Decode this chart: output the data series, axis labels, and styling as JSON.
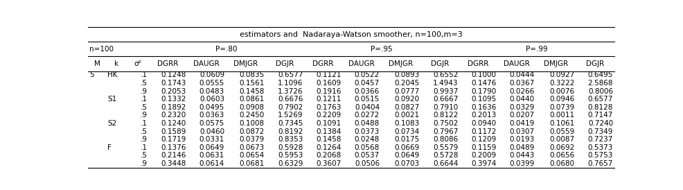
{
  "title": "estimators and  Nadaraya-Watson smoother, n=100,m=3",
  "n_label": "n=100",
  "p_labels": [
    "P=.80",
    "P=.95",
    "P=.99"
  ],
  "col_headers": [
    "M",
    "k",
    "σ²",
    "DGRR",
    "DAUGR",
    "DMJGR",
    "DGJR",
    "DGRR",
    "DAUGR",
    "DMJGR",
    "DGJR",
    "DGRR",
    "DAUGR",
    "DMJGR",
    "DGJR"
  ],
  "rows": [
    [
      "5",
      "HK",
      ".1",
      "0.1248",
      "0.0609",
      "0.0835",
      "0.6577",
      "0.1121",
      "0.0522",
      "0.0893",
      "0.6552",
      "0.1000",
      "0.0444",
      "0.0927",
      "0.6495"
    ],
    [
      "",
      "",
      ".5",
      "0.1743",
      "0.0555",
      "0.1561",
      "1.1096",
      "0.1609",
      "0.0457",
      "0.2045",
      "1.4943",
      "0.1476",
      "0.0367",
      "0.3222",
      "2.5868"
    ],
    [
      "",
      "",
      ".9",
      "0.2053",
      "0.0483",
      "0.1458",
      "1.3726",
      "0.1916",
      "0.0366",
      "0.0777",
      "0.9937",
      "0.1790",
      "0.0266",
      "0.0076",
      "0.8006"
    ],
    [
      "",
      "S1",
      ".1",
      "0.1332",
      "0.0603",
      "0.0861",
      "0.6676",
      "0.1211",
      "0.0515",
      "0.0920",
      "0.6667",
      "0.1095",
      "0.0440",
      "0.0946",
      "0.6577"
    ],
    [
      "",
      "",
      ".5",
      "0.1892",
      "0.0495",
      "0.0908",
      "0.7902",
      "0.1763",
      "0.0404",
      "0.0827",
      "0.7910",
      "0.1636",
      "0.0329",
      "0.0739",
      "0.8128"
    ],
    [
      "",
      "",
      ".9",
      "0.2320",
      "0.0363",
      "0.2450",
      "1.5269",
      "0.2209",
      "0.0272",
      "0.0021",
      "0.8122",
      "0.2013",
      "0.0207",
      "0.0011",
      "0.7147"
    ],
    [
      "",
      "S2",
      ".1",
      "0.1240",
      "0.0575",
      "0.1008",
      "0.7345",
      "0.1091",
      "0.0488",
      "0.1083",
      "0.7502",
      "0.0940",
      "0.0419",
      "0.1061",
      "0.7240"
    ],
    [
      "",
      "",
      ".5",
      "0.1589",
      "0.0460",
      "0.0872",
      "0.8192",
      "0.1384",
      "0.0373",
      "0.0734",
      "0.7967",
      "0.1172",
      "0.0307",
      "0.0559",
      "0.7349"
    ],
    [
      "",
      "",
      ".9",
      "0.1719",
      "0.0331",
      "0.0379",
      "0.8353",
      "0.1458",
      "0.0248",
      "0.0175",
      "0.8086",
      "0.1209",
      "0.0193",
      "0.0087",
      "0.7237"
    ],
    [
      "",
      "F",
      ".1",
      "0.1376",
      "0.0649",
      "0.0673",
      "0.5928",
      "0.1264",
      "0.0568",
      "0.0669",
      "0.5579",
      "0.1159",
      "0.0489",
      "0.0692",
      "0.5373"
    ],
    [
      "",
      "",
      ".5",
      "0.2146",
      "0.0631",
      "0.0654",
      "0.5953",
      "0.2068",
      "0.0537",
      "0.0649",
      "0.5728",
      "0.2009",
      "0.0443",
      "0.0656",
      "0.5753"
    ],
    [
      "",
      "",
      ".9",
      "0.3448",
      "0.0614",
      "0.0681",
      "0.6329",
      "0.3607",
      "0.0506",
      "0.0703",
      "0.6644",
      "0.3974",
      "0.0399",
      "0.0680",
      "0.7657"
    ]
  ],
  "bg_color": "#ffffff",
  "text_color": "#000000",
  "font_size": 7.5,
  "header_font_size": 7.5,
  "title_font_size": 8.0
}
